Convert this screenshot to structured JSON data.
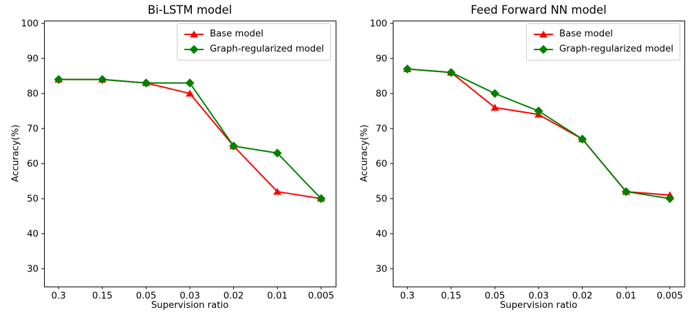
{
  "figure": {
    "background": "#ffffff",
    "axis_color": "#000000",
    "legend_border_color": "#cccccc"
  },
  "chart_data": [
    {
      "type": "line",
      "title": "Bi-LSTM model",
      "xlabel": "Supervision ratio",
      "ylabel": "Accuracy(%)",
      "categories": [
        "0.3",
        "0.15",
        "0.05",
        "0.03",
        "0.02",
        "0.01",
        "0.005"
      ],
      "series": [
        {
          "name": "Base model",
          "color": "#ff0000",
          "marker": "triangle",
          "values": [
            84,
            84,
            83,
            80,
            65,
            52,
            50
          ]
        },
        {
          "name": "Graph-regularized model",
          "color": "#008000",
          "marker": "diamond",
          "values": [
            84,
            84,
            83,
            83,
            65,
            63,
            50
          ]
        }
      ],
      "yticks": [
        30,
        40,
        50,
        60,
        70,
        80,
        90,
        100
      ],
      "ylim": [
        24.9,
        100.8
      ],
      "grid": false,
      "legend_position": "upper right"
    },
    {
      "type": "line",
      "title": "Feed Forward NN model",
      "xlabel": "Supervision ratio",
      "ylabel": "Accuracy(%)",
      "categories": [
        "0.3",
        "0.15",
        "0.05",
        "0.03",
        "0.02",
        "0.01",
        "0.005"
      ],
      "series": [
        {
          "name": "Base model",
          "color": "#ff0000",
          "marker": "triangle",
          "values": [
            87,
            86,
            76,
            74,
            67,
            52,
            51
          ]
        },
        {
          "name": "Graph-regularized model",
          "color": "#008000",
          "marker": "diamond",
          "values": [
            87,
            86,
            80,
            75,
            67,
            52,
            50
          ]
        }
      ],
      "yticks": [
        30,
        40,
        50,
        60,
        70,
        80,
        90,
        100
      ],
      "ylim": [
        24.9,
        100.8
      ],
      "grid": false,
      "legend_position": "upper right"
    }
  ]
}
